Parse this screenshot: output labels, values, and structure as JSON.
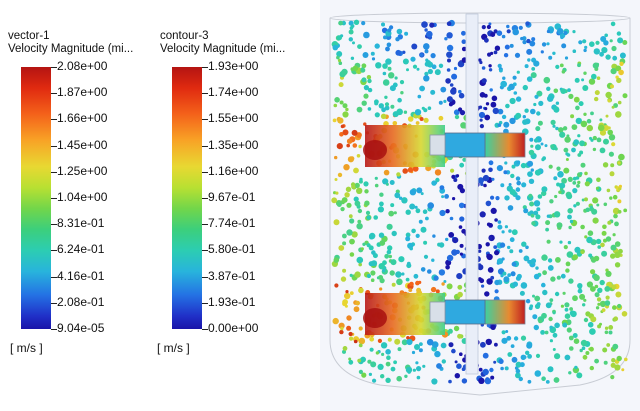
{
  "legends": [
    {
      "name": "vector-1",
      "quantity": "Velocity Magnitude (mi...",
      "ticks": [
        "2.08e+00",
        "1.87e+00",
        "1.66e+00",
        "1.45e+00",
        "1.25e+00",
        "1.04e+00",
        "8.31e-01",
        "6.24e-01",
        "4.16e-01",
        "2.08e-01",
        "9.04e-05"
      ],
      "units": "[ m/s ]"
    },
    {
      "name": "contour-3",
      "quantity": "Velocity Magnitude (mi...",
      "ticks": [
        "1.93e+00",
        "1.74e+00",
        "1.55e+00",
        "1.35e+00",
        "1.16e+00",
        "9.67e-01",
        "7.74e-01",
        "5.80e-01",
        "3.87e-01",
        "1.93e-01",
        "0.00e+00"
      ],
      "units": "[ m/s ]"
    }
  ],
  "colors": {
    "background": "#ffffff",
    "viewport": "#f4f6fb",
    "shaft": "#e9eef8",
    "impeller_hub": "#2fa9e0",
    "impeller_blade": "#d8dfe8",
    "tank_outline": "#c8ccd4"
  }
}
